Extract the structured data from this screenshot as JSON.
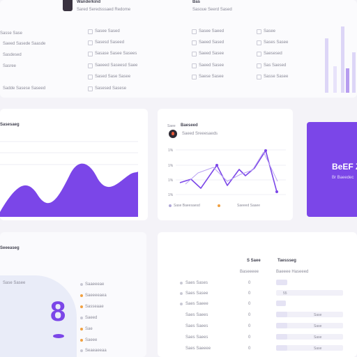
{
  "top_card": {
    "title": "Wanderkind",
    "subtitle": "Sared Seredsssaed Redome",
    "right_title": "Bas",
    "right_subtitle": "Sasoue Seerd Sased",
    "left_labels": [
      "Sasse Sase",
      "Saeed Sasede Saasde",
      "Sasdesed",
      "Sasree",
      "Sadde Sasese Saseed"
    ],
    "col1": [
      "Sasee Sased",
      "Sasesd Saseed",
      "Sasase Sasee Sasees",
      "Saeeed Saseesd Saee",
      "Sased Sase Sasee",
      "Sasesed Sasese"
    ],
    "col2": [
      "Sasee Saeed",
      "Saeed Sased",
      "Saeed Sasee",
      "Saeed Sasee",
      "Saese Sasee"
    ],
    "col3": [
      "Sasee",
      "Sases Sasee",
      "Saesesed",
      "Sas Saesed",
      "Sasse Sasee"
    ]
  },
  "area_card": {
    "title": "Sasesaeg"
  },
  "line_card": {
    "badge": "Saee",
    "title": "Baeseed",
    "subtitle": "Saeed Sreeesaeds",
    "y_ticks": [
      "1%",
      "1%",
      "1%",
      "1%"
    ],
    "legend": [
      "Sase Baeesaesd",
      "Saeeed Saaee"
    ]
  },
  "purple_card": {
    "big": "BeEF Z",
    "small": "Br Baeedec"
  },
  "bottom_left": {
    "title": "Seeeaseg",
    "note": "Sase Sasee",
    "items": [
      "Saaeeeae",
      "Saeeeeaea",
      "Sasseaae",
      "Saeed",
      "Sae",
      "Saeee",
      "Seaeaeeaa"
    ]
  },
  "table": {
    "headers": [
      "S Saee",
      "Taessseg"
    ],
    "subheaders": [
      "Baseeeee",
      "Baeeee Haseeed"
    ],
    "rows": [
      {
        "name": "Saes Sases",
        "val": "0",
        "pct": "55"
      },
      {
        "name": "Saes Sasee",
        "val": "0",
        "pct": ""
      },
      {
        "name": "Saes Saeee",
        "val": "0",
        "pct": ""
      },
      {
        "name": "Saes Saees",
        "val": "0",
        "pct": "Sase"
      },
      {
        "name": "Saes Saees",
        "val": "0",
        "pct": "Sase"
      },
      {
        "name": "Saes Saees",
        "val": "0",
        "pct": "Sase"
      },
      {
        "name": "Saes Saeeee",
        "val": "0",
        "pct": "Sase"
      }
    ]
  },
  "colors": {
    "accent": "#7b46e8",
    "accent_dark": "#5a2fc0",
    "orange": "#f0a040"
  }
}
